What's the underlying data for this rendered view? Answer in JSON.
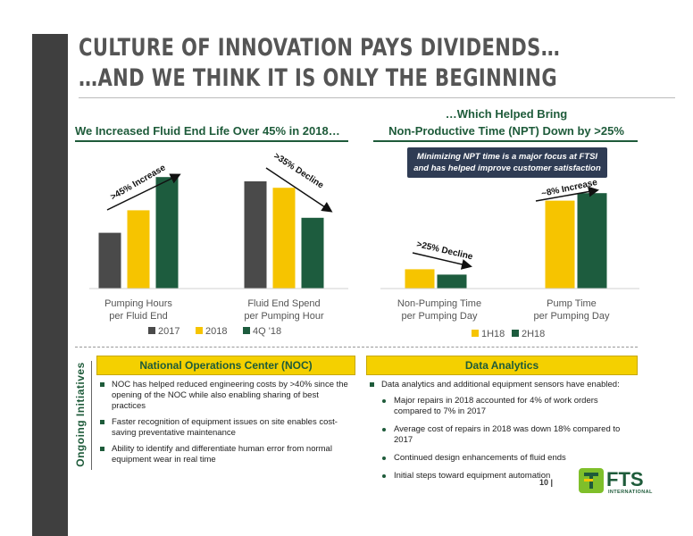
{
  "title": {
    "line1": "CULTURE OF INNOVATION PAYS DIVIDENDS…",
    "line2": "…AND WE THINK IT IS ONLY THE BEGINNING"
  },
  "left_heading": "We Increased Fluid End Life Over 45% in 2018…",
  "right_heading": {
    "line1": "…Which Helped Bring",
    "line2": "Non-Productive Time (NPT) Down by >25%"
  },
  "callout": {
    "line1": "Minimizing NPT time is a major focus at FTSI",
    "line2": "and has helped improve customer satisfaction"
  },
  "colors": {
    "dark_gray": "#4a4a4a",
    "yellow": "#f6c400",
    "dark_green": "#1d5c3e",
    "brand_green": "#1e5b3a"
  },
  "chart_data": [
    {
      "type": "bar",
      "series": [
        {
          "name": "2017",
          "values": [
            52,
            100
          ]
        },
        {
          "name": "2018",
          "values": [
            73,
            94
          ]
        },
        {
          "name": "4Q '18",
          "values": [
            104,
            66
          ]
        }
      ],
      "categories": [
        "Pumping Hours\nper Fluid End",
        "Fluid End Spend\nper Pumping Hour"
      ],
      "annotations": [
        ">45% Increase",
        ">35% Decline"
      ],
      "legend_position": "bottom",
      "grid": false
    },
    {
      "type": "bar",
      "series": [
        {
          "name": "1H18",
          "values": [
            18,
            82
          ]
        },
        {
          "name": "2H18",
          "values": [
            13,
            89
          ]
        }
      ],
      "categories": [
        "Non-Pumping Time\nper Pumping Day",
        "Pump Time\nper Pumping Day"
      ],
      "annotations": [
        ">25% Decline",
        "~8% Increase"
      ],
      "legend_position": "bottom",
      "grid": false
    }
  ],
  "left_chart": {
    "categories": [
      {
        "line1": "Pumping Hours",
        "line2": "per Fluid End"
      },
      {
        "line1": "Fluid End Spend",
        "line2": "per Pumping Hour"
      }
    ],
    "legend": [
      "2017",
      "2018",
      "4Q '18"
    ],
    "annotations": [
      ">45% Increase",
      ">35% Decline"
    ]
  },
  "right_chart": {
    "categories": [
      {
        "line1": "Non-Pumping Time",
        "line2": "per Pumping Day"
      },
      {
        "line1": "Pump Time",
        "line2": "per Pumping Day"
      }
    ],
    "legend": [
      "1H18",
      "2H18"
    ],
    "annotations": [
      ">25% Decline",
      "~8% Increase"
    ]
  },
  "ongoing_label": "Ongoing Initiatives",
  "noc": {
    "heading": "National Operations Center (NOC)",
    "bullets": [
      "NOC has helped reduced engineering costs by >40% since the opening of the NOC while also enabling sharing of best practices",
      "Faster recognition of equipment issues on site enables cost-saving preventative maintenance",
      "Ability to identify and differentiate human error from normal equipment wear in real time"
    ]
  },
  "data_analytics": {
    "heading": "Data Analytics",
    "intro": "Data analytics and additional equipment sensors have enabled:",
    "bullets": [
      "Major repairs in 2018 accounted for 4% of work orders compared to 7% in 2017",
      "Average cost of repairs in 2018 was down 18% compared to 2017",
      "Continued design enhancements  of fluid ends",
      "Initial steps toward equipment automation"
    ]
  },
  "page_number": "10 |",
  "logo": {
    "text": "FTS",
    "subtext": "INTERNATIONAL"
  }
}
